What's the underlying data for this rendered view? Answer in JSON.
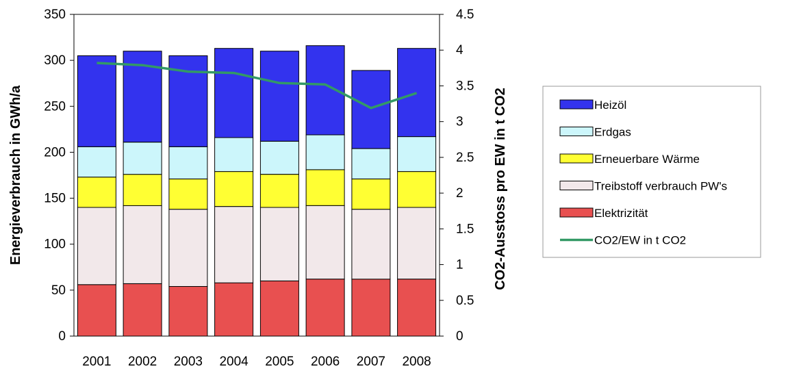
{
  "chart_data": {
    "type": "bar",
    "stacked": true,
    "categories": [
      "2001",
      "2002",
      "2003",
      "2004",
      "2005",
      "2006",
      "2007",
      "2008"
    ],
    "series": [
      {
        "name": "Elektrizität",
        "color": "#e85050",
        "values": [
          56,
          57,
          54,
          58,
          60,
          62,
          62,
          62
        ]
      },
      {
        "name": "Treibstoff verbrauch PW's",
        "color": "#f2e8ea",
        "values": [
          84,
          85,
          84,
          83,
          80,
          80,
          76,
          78
        ]
      },
      {
        "name": "Erneuerbare Wärme",
        "color": "#ffff33",
        "values": [
          33,
          34,
          33,
          38,
          36,
          39,
          33,
          39
        ]
      },
      {
        "name": "Erdgas",
        "color": "#ccf6fb",
        "values": [
          33,
          35,
          35,
          37,
          36,
          38,
          33,
          38
        ]
      },
      {
        "name": "Heizöl",
        "color": "#3333ee",
        "values": [
          99,
          99,
          99,
          97,
          98,
          97,
          85,
          96
        ]
      }
    ],
    "line_series": {
      "name": "CO2/EW in t CO2",
      "color": "#339966",
      "axis": "secondary",
      "values": [
        3.82,
        3.79,
        3.7,
        3.68,
        3.54,
        3.52,
        3.19,
        3.4
      ]
    },
    "ylabel": "Energieverbrauch in GWh/a",
    "y2label": "CO2-Ausstoss pro EW in t CO2",
    "ylim": [
      0,
      350
    ],
    "y2lim": [
      0,
      4.5
    ],
    "yticks": [
      "0",
      "50",
      "100",
      "150",
      "200",
      "250",
      "300",
      "350"
    ],
    "y2ticks": [
      "0",
      "0.5",
      "1",
      "1.5",
      "2",
      "2.5",
      "3",
      "3.5",
      "4",
      "4.5"
    ],
    "legend_position": "right",
    "grid": false
  }
}
